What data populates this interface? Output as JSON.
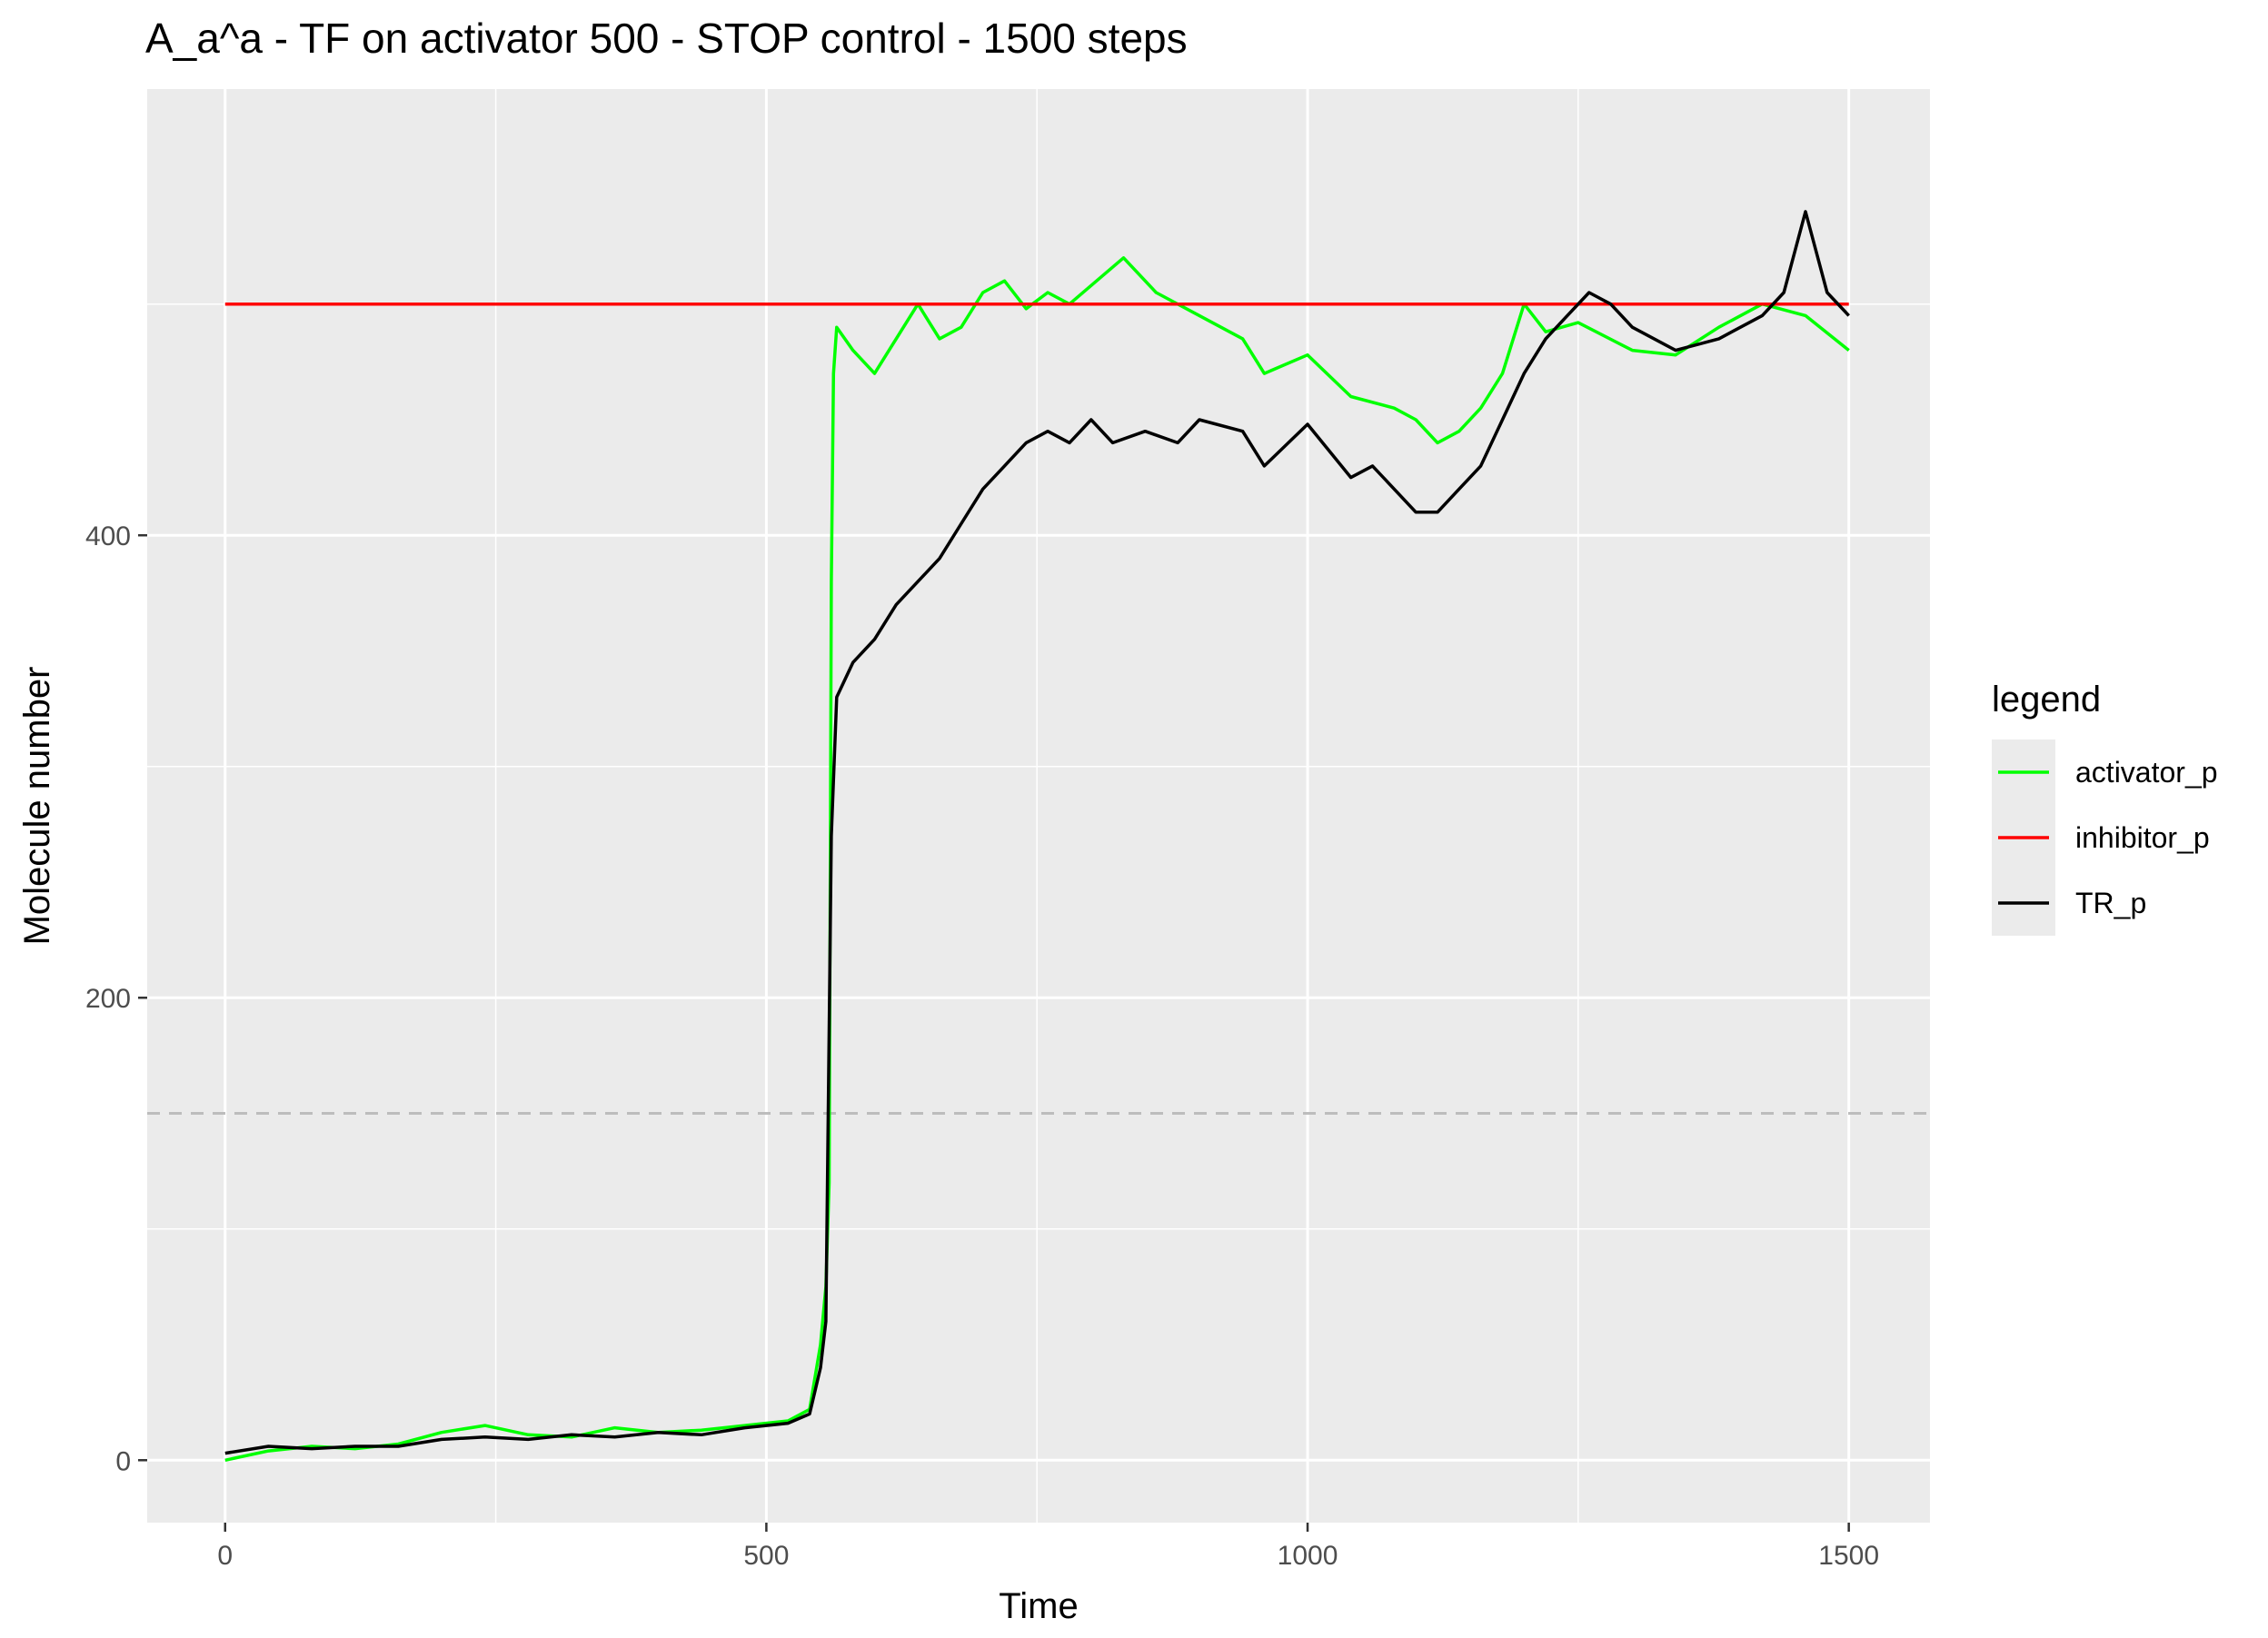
{
  "chart_data": {
    "type": "line",
    "title": "A_a^a - TF on activator 500 - STOP control - 1500 steps",
    "xlabel": "Time",
    "ylabel": "Molecule number",
    "xlim": [
      -72,
      1575
    ],
    "ylim": [
      -27,
      593
    ],
    "x_ticks": [
      0,
      500,
      1000,
      1500
    ],
    "x_tick_labels": [
      "0",
      "500",
      "1000",
      "1500"
    ],
    "y_ticks": [
      0,
      200,
      400
    ],
    "y_tick_labels": [
      "0",
      "200",
      "400"
    ],
    "grid": true,
    "reference_line": {
      "y": 150,
      "style": "dashed",
      "color": "#bdbdbd"
    },
    "legend": {
      "title": "legend",
      "position": "right",
      "entries": [
        "activator_p",
        "inhibitor_p",
        "TR_p"
      ]
    },
    "series": [
      {
        "name": "activator_p",
        "color": "#00ff00",
        "points": [
          [
            0,
            0
          ],
          [
            40,
            4
          ],
          [
            80,
            6
          ],
          [
            120,
            5
          ],
          [
            160,
            7
          ],
          [
            200,
            12
          ],
          [
            240,
            15
          ],
          [
            280,
            11
          ],
          [
            320,
            10
          ],
          [
            360,
            14
          ],
          [
            400,
            12
          ],
          [
            440,
            13
          ],
          [
            480,
            15
          ],
          [
            520,
            17
          ],
          [
            540,
            22
          ],
          [
            550,
            50
          ],
          [
            555,
            75
          ],
          [
            558,
            120
          ],
          [
            560,
            380
          ],
          [
            562,
            470
          ],
          [
            565,
            490
          ],
          [
            580,
            480
          ],
          [
            600,
            470
          ],
          [
            620,
            485
          ],
          [
            640,
            500
          ],
          [
            660,
            485
          ],
          [
            680,
            490
          ],
          [
            700,
            505
          ],
          [
            720,
            510
          ],
          [
            740,
            498
          ],
          [
            760,
            505
          ],
          [
            780,
            500
          ],
          [
            800,
            508
          ],
          [
            830,
            520
          ],
          [
            860,
            505
          ],
          [
            900,
            495
          ],
          [
            940,
            485
          ],
          [
            960,
            470
          ],
          [
            1000,
            478
          ],
          [
            1040,
            460
          ],
          [
            1080,
            455
          ],
          [
            1100,
            450
          ],
          [
            1120,
            440
          ],
          [
            1140,
            445
          ],
          [
            1160,
            455
          ],
          [
            1180,
            470
          ],
          [
            1200,
            500
          ],
          [
            1220,
            488
          ],
          [
            1250,
            492
          ],
          [
            1300,
            480
          ],
          [
            1340,
            478
          ],
          [
            1380,
            490
          ],
          [
            1420,
            500
          ],
          [
            1460,
            495
          ],
          [
            1500,
            480
          ]
        ]
      },
      {
        "name": "inhibitor_p",
        "color": "#ff0000",
        "points": [
          [
            0,
            500
          ],
          [
            1500,
            500
          ]
        ]
      },
      {
        "name": "TR_p",
        "color": "#000000",
        "points": [
          [
            0,
            3
          ],
          [
            40,
            6
          ],
          [
            80,
            5
          ],
          [
            120,
            6
          ],
          [
            160,
            6
          ],
          [
            200,
            9
          ],
          [
            240,
            10
          ],
          [
            280,
            9
          ],
          [
            320,
            11
          ],
          [
            360,
            10
          ],
          [
            400,
            12
          ],
          [
            440,
            11
          ],
          [
            480,
            14
          ],
          [
            520,
            16
          ],
          [
            540,
            20
          ],
          [
            550,
            40
          ],
          [
            555,
            60
          ],
          [
            560,
            270
          ],
          [
            565,
            330
          ],
          [
            580,
            345
          ],
          [
            600,
            355
          ],
          [
            620,
            370
          ],
          [
            640,
            380
          ],
          [
            660,
            390
          ],
          [
            680,
            405
          ],
          [
            700,
            420
          ],
          [
            720,
            430
          ],
          [
            740,
            440
          ],
          [
            760,
            445
          ],
          [
            780,
            440
          ],
          [
            800,
            450
          ],
          [
            820,
            440
          ],
          [
            850,
            445
          ],
          [
            880,
            440
          ],
          [
            900,
            450
          ],
          [
            940,
            445
          ],
          [
            960,
            430
          ],
          [
            1000,
            448
          ],
          [
            1040,
            425
          ],
          [
            1060,
            430
          ],
          [
            1100,
            410
          ],
          [
            1120,
            410
          ],
          [
            1140,
            420
          ],
          [
            1160,
            430
          ],
          [
            1180,
            450
          ],
          [
            1200,
            470
          ],
          [
            1220,
            485
          ],
          [
            1240,
            495
          ],
          [
            1260,
            505
          ],
          [
            1280,
            500
          ],
          [
            1300,
            490
          ],
          [
            1340,
            480
          ],
          [
            1380,
            485
          ],
          [
            1420,
            495
          ],
          [
            1440,
            505
          ],
          [
            1460,
            540
          ],
          [
            1480,
            505
          ],
          [
            1500,
            495
          ]
        ]
      }
    ]
  }
}
